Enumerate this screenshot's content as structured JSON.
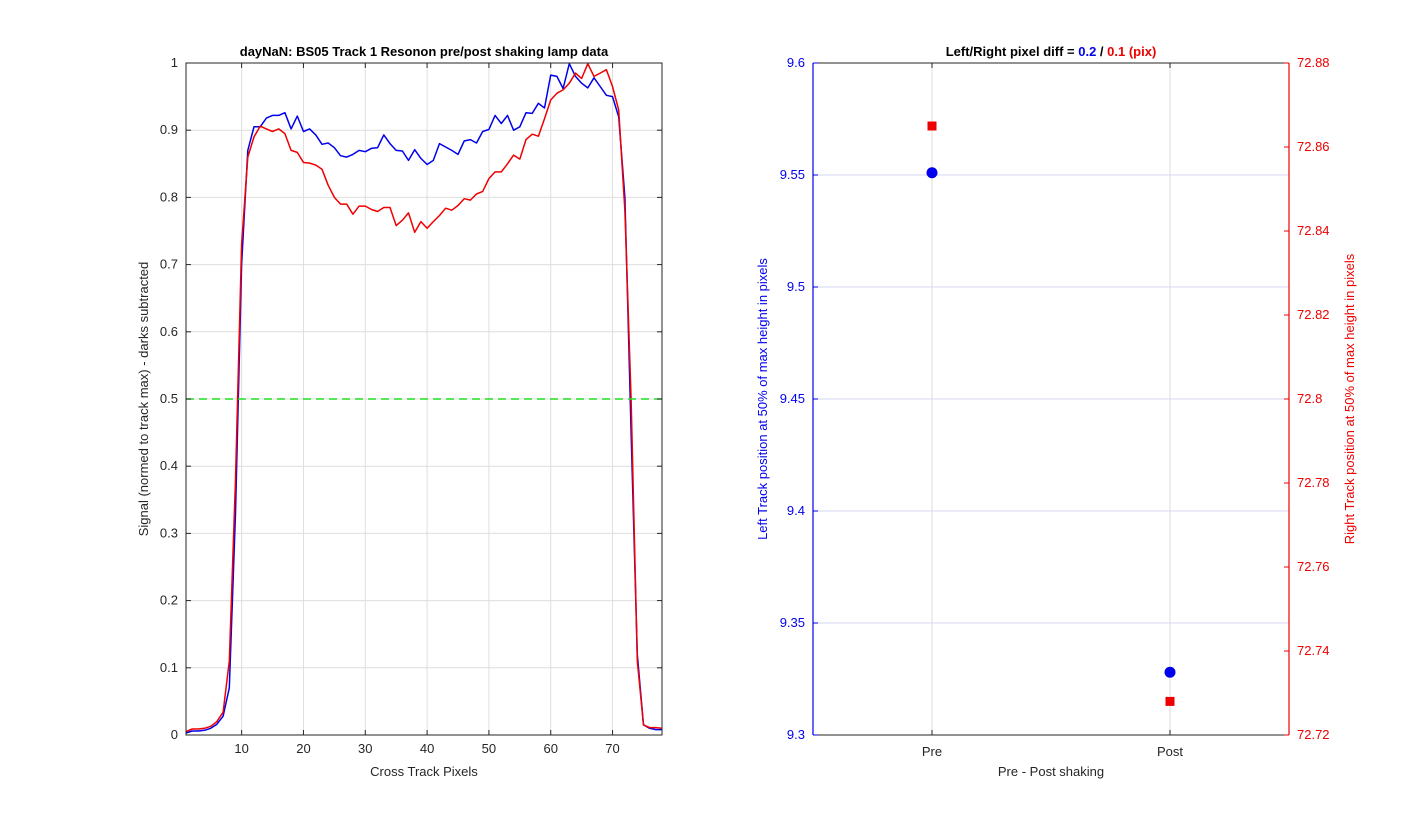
{
  "chart_data": [
    {
      "type": "line",
      "title": "dayNaN: BS05  Track 1 Resonon pre/post shaking lamp data",
      "xlabel": "Cross Track Pixels",
      "ylabel": "Signal (normed to track max) - darks subtracted",
      "xlim": [
        1,
        78
      ],
      "ylim": [
        0,
        1
      ],
      "xticks": [
        "10",
        "20",
        "30",
        "40",
        "50",
        "60",
        "70"
      ],
      "yticks": [
        "0",
        "0.1",
        "0.2",
        "0.3",
        "0.4",
        "0.5",
        "0.6",
        "0.7",
        "0.8",
        "0.9",
        "1"
      ],
      "grid": true,
      "x": [
        1,
        2,
        3,
        4,
        5,
        6,
        7,
        8,
        9,
        10,
        11,
        12,
        13,
        14,
        15,
        16,
        17,
        18,
        19,
        20,
        21,
        22,
        23,
        24,
        25,
        26,
        27,
        28,
        29,
        30,
        31,
        32,
        33,
        34,
        35,
        36,
        37,
        38,
        39,
        40,
        41,
        42,
        43,
        44,
        45,
        46,
        47,
        48,
        49,
        50,
        51,
        52,
        53,
        54,
        55,
        56,
        57,
        58,
        59,
        60,
        61,
        62,
        63,
        64,
        65,
        66,
        67,
        68,
        69,
        70,
        71,
        72,
        73,
        74,
        75,
        76,
        77,
        78
      ],
      "series": [
        {
          "color": "#0000ee",
          "values": [
            0.003,
            0.006,
            0.006,
            0.007,
            0.01,
            0.016,
            0.028,
            0.07,
            0.33,
            0.7,
            0.87,
            0.905,
            0.905,
            0.918,
            0.922,
            0.922,
            0.926,
            0.902,
            0.921,
            0.898,
            0.902,
            0.893,
            0.879,
            0.881,
            0.874,
            0.862,
            0.86,
            0.864,
            0.87,
            0.868,
            0.873,
            0.874,
            0.893,
            0.88,
            0.87,
            0.869,
            0.855,
            0.871,
            0.858,
            0.849,
            0.855,
            0.88,
            0.875,
            0.87,
            0.864,
            0.884,
            0.886,
            0.881,
            0.898,
            0.901,
            0.922,
            0.91,
            0.922,
            0.9,
            0.905,
            0.926,
            0.925,
            0.94,
            0.933,
            0.982,
            0.98,
            0.962,
            0.999,
            0.98,
            0.97,
            0.963,
            0.978,
            0.965,
            0.952,
            0.95,
            0.92,
            0.8,
            0.45,
            0.12,
            0.015,
            0.01,
            0.008,
            0.008
          ]
        },
        {
          "color": "#ee0000",
          "values": [
            0.005,
            0.009,
            0.009,
            0.01,
            0.013,
            0.02,
            0.034,
            0.11,
            0.38,
            0.73,
            0.86,
            0.89,
            0.906,
            0.902,
            0.898,
            0.902,
            0.895,
            0.87,
            0.867,
            0.852,
            0.851,
            0.848,
            0.842,
            0.818,
            0.8,
            0.79,
            0.79,
            0.775,
            0.787,
            0.787,
            0.782,
            0.779,
            0.785,
            0.785,
            0.758,
            0.766,
            0.777,
            0.748,
            0.764,
            0.754,
            0.764,
            0.773,
            0.784,
            0.781,
            0.788,
            0.798,
            0.796,
            0.805,
            0.809,
            0.828,
            0.838,
            0.838,
            0.85,
            0.863,
            0.857,
            0.886,
            0.894,
            0.891,
            0.917,
            0.945,
            0.955,
            0.96,
            0.97,
            0.985,
            0.977,
            0.999,
            0.98,
            0.985,
            0.99,
            0.965,
            0.93,
            0.78,
            0.5,
            0.11,
            0.015,
            0.011,
            0.011,
            0.01
          ]
        },
        {
          "color": "#22dd22",
          "style": "dashed",
          "x": [
            1,
            78
          ],
          "values": [
            0.5,
            0.5
          ]
        }
      ]
    },
    {
      "type": "scatter",
      "title_prefix": "Left/Right pixel diff = ",
      "title_left": "0.2",
      "title_sep": " / ",
      "title_right": "0.1 (pix)",
      "xlabel": "Pre - Post shaking",
      "ylabel_left": "Left Track position at 50% of max height in pixels",
      "ylabel_right": "Right Track position at 50% of max height in pixels",
      "categories": [
        "Pre",
        "Post"
      ],
      "xlim": [
        0.5,
        2.5
      ],
      "ylim_left": [
        9.3,
        9.6
      ],
      "ylim_right": [
        72.72,
        72.88
      ],
      "yticks_left": [
        "9.3",
        "9.35",
        "9.4",
        "9.45",
        "9.5",
        "9.55",
        "9.6"
      ],
      "yticks_right": [
        "72.72",
        "72.74",
        "72.76",
        "72.78",
        "72.8",
        "72.82",
        "72.84",
        "72.86",
        "72.88"
      ],
      "grid": true,
      "series": [
        {
          "axis": "left",
          "marker": "circle",
          "color": "#0000ee",
          "values": [
            9.551,
            9.328
          ]
        },
        {
          "axis": "right",
          "marker": "square",
          "color": "#ee0000",
          "values": [
            72.865,
            72.728
          ]
        }
      ]
    }
  ]
}
